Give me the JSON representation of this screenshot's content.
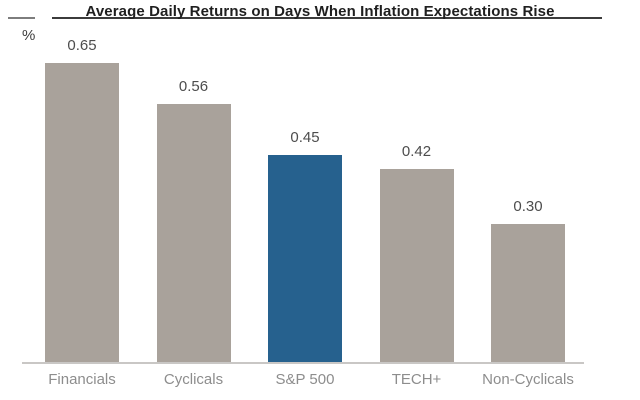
{
  "header": {
    "title": "Average Daily Returns on Days When Inflation Expectations Rise",
    "unit_label": "%"
  },
  "chart_data": {
    "type": "bar",
    "title": "Average Daily Returns on Days When Inflation Expectations Rise",
    "xlabel": "",
    "ylabel": "%",
    "categories": [
      "Financials",
      "Cyclicals",
      "S&P 500",
      "TECH+",
      "Non-Cyclicals"
    ],
    "values": [
      0.65,
      0.56,
      0.45,
      0.42,
      0.3
    ],
    "value_labels": [
      "0.65",
      "0.56",
      "0.45",
      "0.42",
      "0.30"
    ],
    "highlight_index": 2,
    "colors": {
      "bar_default": "#a9a29b",
      "bar_highlight": "#26618e",
      "value_label": "#4d4d4d",
      "category_label": "#8d8d8d",
      "axis_line": "#c9c7c5",
      "title_text": "#1f1f1f"
    },
    "ylim": [
      0,
      0.7
    ],
    "grid": false,
    "legend": "none",
    "axis_ticks": "none"
  }
}
